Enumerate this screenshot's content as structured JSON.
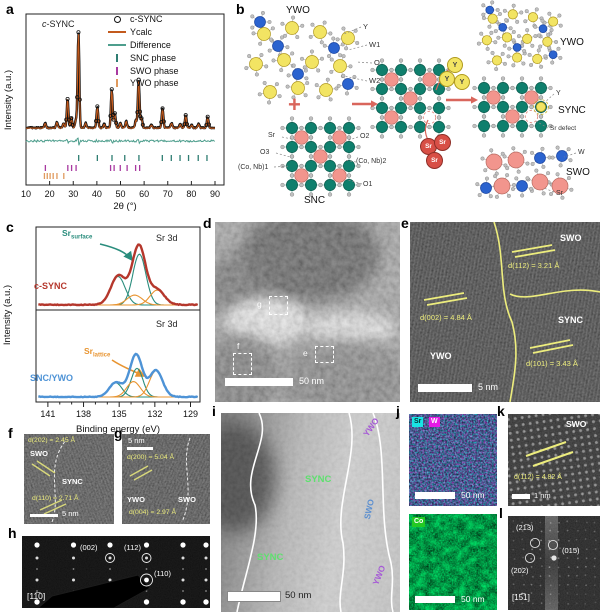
{
  "colors": {
    "obs": "#111111",
    "calc": "#c35a1d",
    "diff": "#4e9e8d",
    "snc_tick": "#2e7d72",
    "swo_tick": "#a839a0",
    "ywo_tick": "#e09a5d",
    "csync": "#b5372c",
    "sncywo": "#4e93d6",
    "comp_teal": "#2a8d7d",
    "comp_orange": "#e89430",
    "atom_teal": "#0f7f6d",
    "atom_pink": "#f2958d",
    "atom_yellow": "#f2e463",
    "atom_blue": "#2b63cf",
    "atom_gray": "#c0c0c0",
    "accent_red": "#d9665c",
    "hr_yellow": "#eded7d",
    "map_cyan": "#19e5e5",
    "map_magenta": "#e519e5",
    "map_green": "#23c923",
    "label_green": "#5fe06f",
    "label_purple": "#a65ad6",
    "label_blue": "#5b8fd0"
  },
  "panel_a": {
    "label": "a",
    "title_c": "c",
    "title_rest": "-SYNC",
    "ylabel": "Intensity (a.u.)",
    "xlabel": "2θ (°)",
    "legend": [
      "c-SYNC",
      "Ycalc",
      "Difference",
      "SNC phase",
      "SWO phase",
      "YWO phase"
    ]
  },
  "panel_b": {
    "label": "b",
    "ywo_left": "YWO",
    "y": "Y",
    "w1": "W1",
    "o": "O",
    "w2": "W2",
    "sr": "Sr",
    "o3": "O3",
    "conb1": "(Co, Nb)1",
    "conb2": "(Co, Nb)2",
    "o2": "O2",
    "o1": "O1",
    "snc": "SNC",
    "plus": "+",
    "y_ball": "Y",
    "sr_ball": "Sr",
    "ywo_right": "YWO",
    "y_right": "Y",
    "sync": "SYNC",
    "sr_defect": "Sr defect",
    "w": "W",
    "swo": "SWO",
    "sr_right": "Sr"
  },
  "panel_c": {
    "label": "c",
    "sr3d_top": "Sr 3d",
    "sr3d_bottom": "Sr 3d",
    "sample_top": "c-SYNC",
    "sample_bottom": "SNC/YWO",
    "ann_top_main": "Sr",
    "ann_top_sub": "surface",
    "ann_bottom_main": "Sr",
    "ann_bottom_sub": "lattice",
    "xlabel": "Binding energy (eV)",
    "ylabel": "Intensity (a.u.)"
  },
  "panel_d": {
    "label": "d",
    "box_g": "g",
    "box_f": "f",
    "box_e": "e",
    "scalebar": "50 nm"
  },
  "panel_e": {
    "label": "e",
    "swo": "SWO",
    "d112": "d(112) = 3.21 Å",
    "d002": "d(002) = 4.84 Å",
    "sync": "SYNC",
    "d101": "d(101) = 3.43 Å",
    "ywo": "YWO",
    "scalebar": "5 nm"
  },
  "panel_f": {
    "label": "f",
    "d202": "d(202) = 2.45 Å",
    "swo": "SWO",
    "sync": "SYNC",
    "d110": "d(110) = 2.71 Å",
    "scalebar": "5 nm"
  },
  "panel_g": {
    "label": "g",
    "scalebar": "5 nm",
    "d200": "d(200) = 5.04 Å",
    "ywo": "YWO",
    "swo": "SWO",
    "d004": "d(004) = 2.97 Å"
  },
  "panel_h": {
    "label": "h",
    "s002": "(002)",
    "s112": "(112)",
    "s110": "(110)",
    "zone": "[11̅0]"
  },
  "panel_i": {
    "label": "i",
    "sync_center": "SYNC",
    "sync_bottom": "SYNC",
    "ywo_top": "YWO",
    "swo": "SWO",
    "ywo_bottom": "YWO",
    "scalebar": "50 nm"
  },
  "panel_j": {
    "label": "j",
    "sr": "Sr",
    "w": "W",
    "scalebar_top": "50 nm",
    "co": "Co",
    "scalebar_bottom": "50 nm"
  },
  "panel_k": {
    "label": "k",
    "swo": "SWO",
    "d112": "d(112) = 4.82 Å",
    "scalebar": "1 nm"
  },
  "panel_l": {
    "label": "l",
    "s213": "(21̅3)",
    "s015": "(015)",
    "s202": "(202)",
    "zone": "[15̅1]"
  },
  "chart_data": [
    {
      "type": "line",
      "title": "Rietveld-refined powder XRD pattern of c-SYNC",
      "xlabel": "2θ (°)",
      "ylabel": "Intensity (a.u.)",
      "xlim": [
        10,
        90
      ],
      "x_ticks": [
        10,
        20,
        30,
        40,
        50,
        60,
        70,
        80,
        90
      ],
      "legend": [
        "c-SYNC",
        "Ycalc",
        "Difference",
        "SNC phase",
        "SWO phase",
        "YWO phase"
      ],
      "legend_position": "top-right",
      "grid": false,
      "peaks": [
        [
          18.1,
          0.05
        ],
        [
          23.1,
          0.06
        ],
        [
          25.9,
          0.05
        ],
        [
          27.6,
          0.3
        ],
        [
          29.2,
          0.1
        ],
        [
          31.1,
          0.08
        ],
        [
          32.2,
          1.0
        ],
        [
          35.2,
          0.05
        ],
        [
          40.2,
          0.22
        ],
        [
          43.1,
          0.04
        ],
        [
          46.3,
          0.4
        ],
        [
          47.6,
          0.15
        ],
        [
          49.9,
          0.05
        ],
        [
          52.4,
          0.07
        ],
        [
          56.5,
          0.08
        ],
        [
          57.7,
          0.5
        ],
        [
          58.9,
          0.1
        ],
        [
          63.1,
          0.03
        ],
        [
          67.8,
          0.2
        ],
        [
          71.6,
          0.05
        ],
        [
          75.3,
          0.04
        ],
        [
          77.6,
          0.13
        ],
        [
          80.1,
          0.03
        ],
        [
          83.0,
          0.04
        ],
        [
          86.9,
          0.11
        ]
      ],
      "phase_ticks": {
        "SNC": [
          32.3,
          40.2,
          46.4,
          51.8,
          57.8,
          67.7,
          71.5,
          75.2,
          78.8,
          82.9,
          86.6
        ],
        "SWO": [
          18.2,
          27.7,
          29.3,
          31.2,
          45.8,
          47.3,
          49.9,
          52.8,
          56.4,
          58.1
        ],
        "YWO": [
          17.8,
          19.0,
          20.2,
          21.5,
          23.1,
          26.0
        ]
      }
    },
    {
      "type": "line",
      "title": "Sr 3d XPS of c-SYNC",
      "xlabel": "Binding energy (eV)",
      "ylabel": "Intensity (a.u.)",
      "x_ticks": [
        141,
        138,
        135,
        132,
        129
      ],
      "x_reversed": true,
      "sample": "c-SYNC",
      "region": "Sr 3d",
      "annotation": "Sr surface",
      "envelope_color_key": "csync",
      "components": [
        {
          "label": "Sr surface",
          "center": 135.1,
          "height": 0.46,
          "width": 0.85,
          "color": "teal"
        },
        {
          "label": "Sr surface",
          "center": 133.3,
          "height": 0.82,
          "width": 0.78,
          "color": "teal"
        },
        {
          "label": "Sr lattice",
          "center": 133.7,
          "height": 0.16,
          "width": 0.9,
          "color": "orange"
        },
        {
          "label": "Sr lattice",
          "center": 131.8,
          "height": 0.24,
          "width": 0.85,
          "color": "orange"
        }
      ]
    },
    {
      "type": "line",
      "title": "Sr 3d XPS of SNC/YWO",
      "xlabel": "Binding energy (eV)",
      "ylabel": "Intensity (a.u.)",
      "x_ticks": [
        141,
        138,
        135,
        132,
        129
      ],
      "x_reversed": true,
      "sample": "SNC/YWO",
      "region": "Sr 3d",
      "annotation": "Sr lattice",
      "envelope_color_key": "sncywo",
      "components": [
        {
          "label": "Sr surface",
          "center": 135.3,
          "height": 0.26,
          "width": 0.75,
          "color": "teal"
        },
        {
          "label": "Sr surface",
          "center": 133.5,
          "height": 0.52,
          "width": 0.7,
          "color": "teal"
        },
        {
          "label": "Sr lattice",
          "center": 133.8,
          "height": 0.28,
          "width": 0.8,
          "color": "orange"
        },
        {
          "label": "Sr lattice",
          "center": 131.9,
          "height": 0.48,
          "width": 0.78,
          "color": "orange"
        }
      ]
    }
  ]
}
